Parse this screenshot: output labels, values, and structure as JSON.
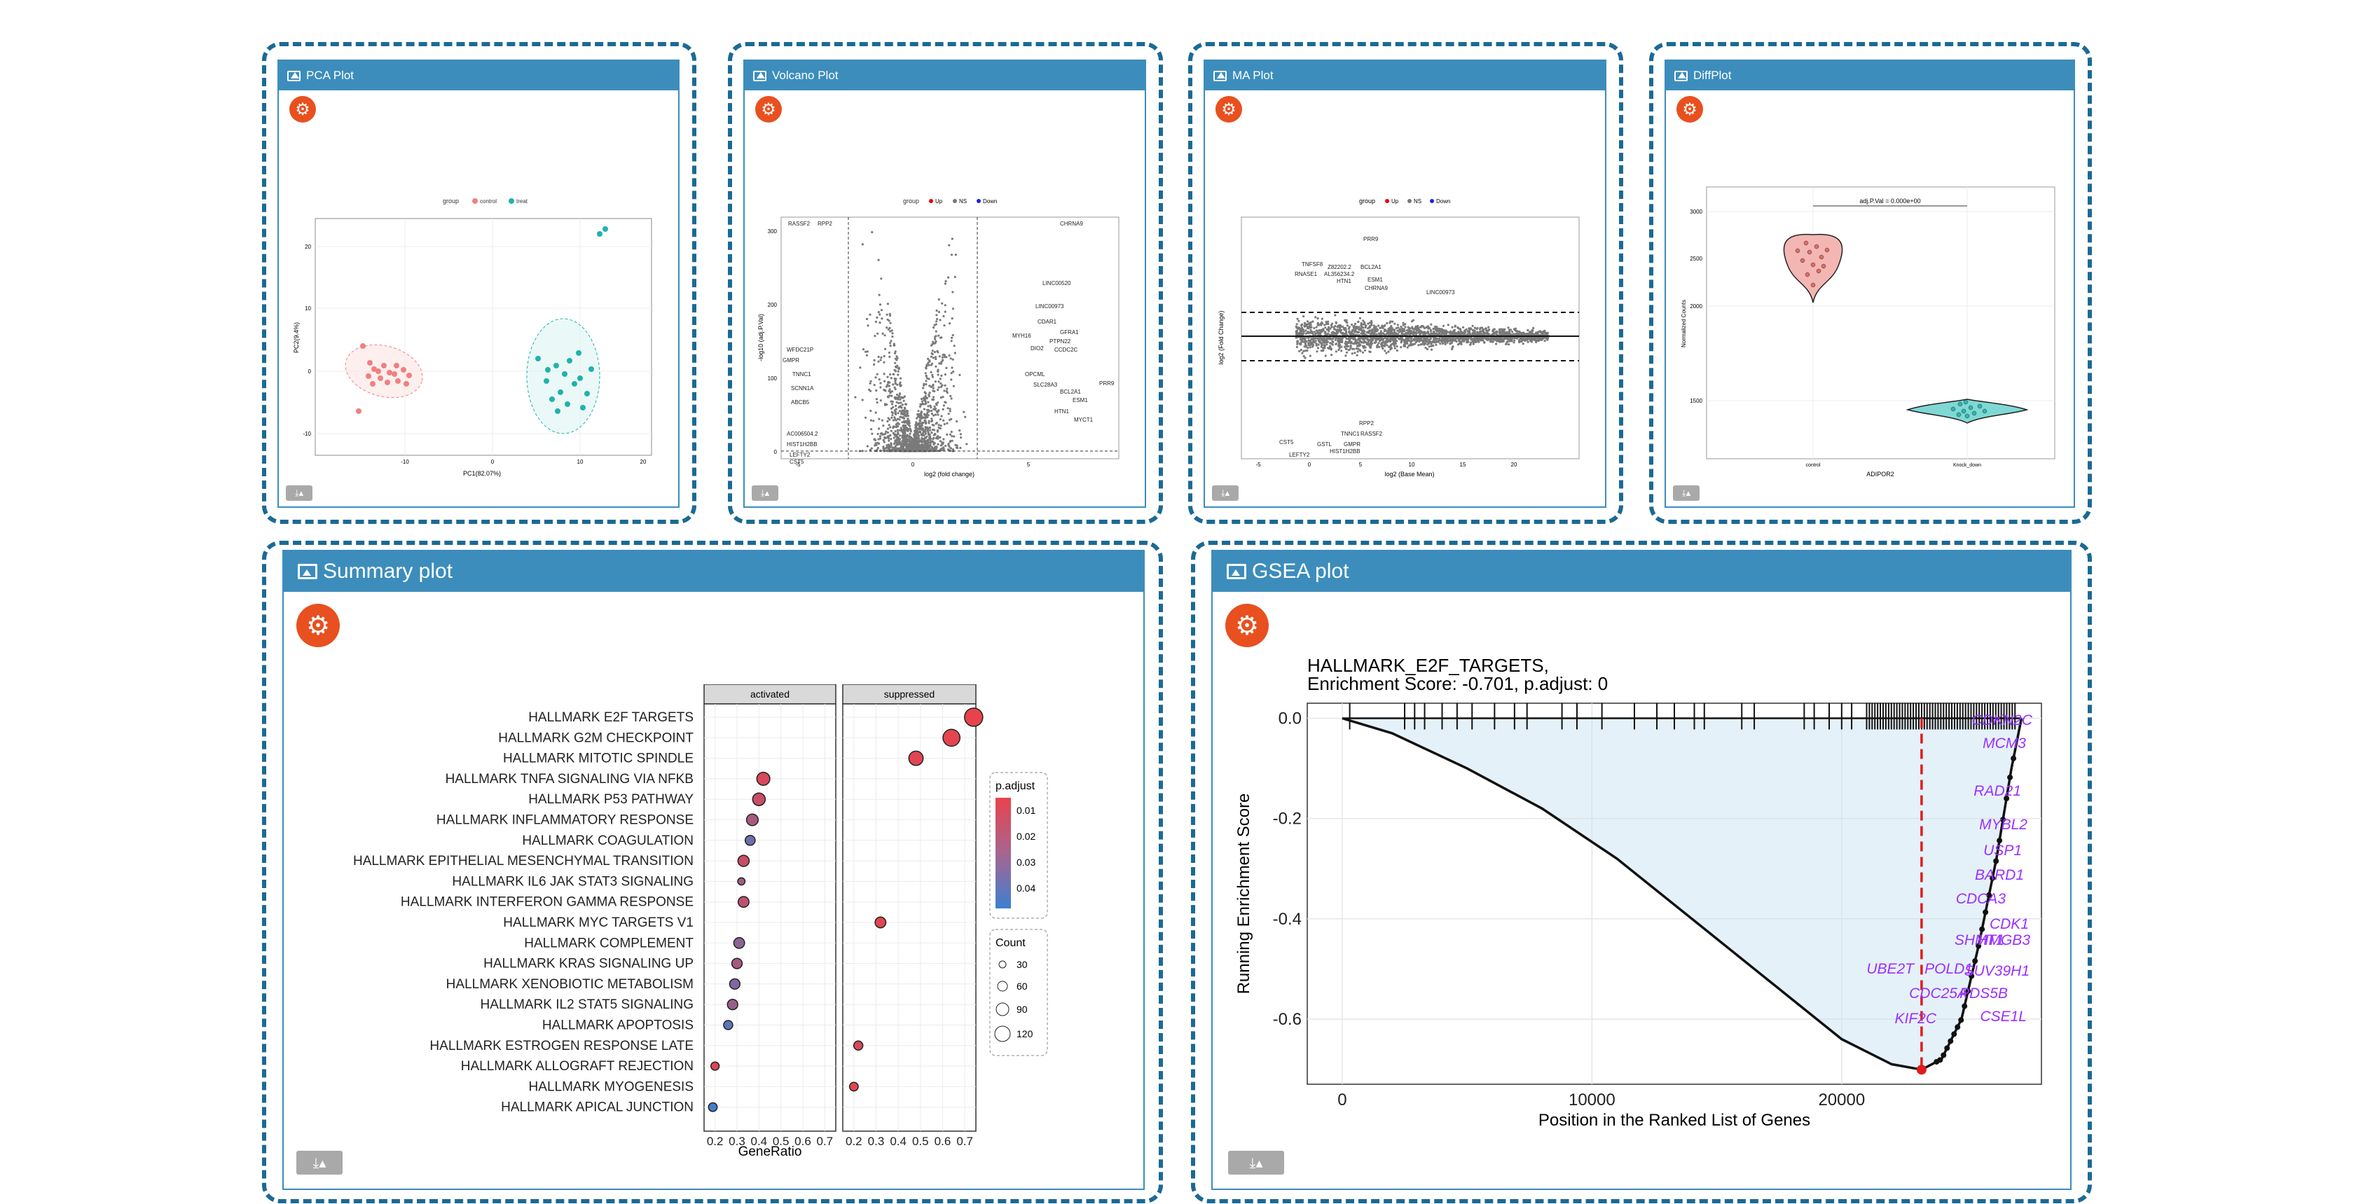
{
  "panels": {
    "pca": {
      "title": "PCA Plot"
    },
    "volcano": {
      "title": "Volcano Plot"
    },
    "ma": {
      "title": "MA Plot"
    },
    "diff": {
      "title": "DiffPlot"
    },
    "summary": {
      "title": "Summary plot"
    },
    "gsea": {
      "title": "GSEA plot"
    }
  },
  "icons": {
    "settings": "gear-icon",
    "download": "download-icon",
    "image": "image-icon"
  },
  "colors": {
    "header": "#3c8dbc",
    "border": "#1b6a94",
    "gear": "#e8501f",
    "download": "#a9a9a9"
  },
  "pca_plot": {
    "legend_title": "group",
    "legend": [
      "control",
      "treat"
    ],
    "xlabel": "PC1(82.07%)",
    "ylabel": "PC2(9.4%)",
    "xticks": [
      "-10",
      "0",
      "10",
      "20"
    ],
    "yticks": [
      "20",
      "10",
      "0",
      "-10"
    ]
  },
  "volcano_plot": {
    "legend_title": "group",
    "legend": [
      "Up",
      "NS",
      "Down"
    ],
    "xlabel": "log2 (fold change)",
    "ylabel": "-log10 (adj.P.Val)",
    "xticks": [
      "-5",
      "0",
      "5"
    ],
    "yticks": [
      "300",
      "200",
      "100",
      "0"
    ],
    "labels": [
      "RASSF2",
      "RPP2",
      "CHRNA9",
      "LINC00520",
      "LINC00973",
      "CDAR1",
      "GFRA1",
      "PTPN22",
      "DIO2",
      "MYH16",
      "CCDC2C",
      "WFDC21P",
      "TNNC1",
      "SCNN1A",
      "ABCB5",
      "GMPR",
      "OPCML",
      "SLC28A3",
      "BCL2A1",
      "ESM1",
      "HTN1",
      "MYCT1",
      "PRR9",
      "AC006504.2",
      "HIST1H2BB",
      "LEFTY2",
      "CST5"
    ]
  },
  "ma_plot": {
    "legend_title": "group",
    "legend": [
      "Up",
      "NS",
      "Down"
    ],
    "xlabel": "log2 (Base Mean)",
    "ylabel": "log2 (Fold Change)",
    "xticks": [
      "-5",
      "0",
      "5",
      "10",
      "15",
      "20"
    ],
    "labels": [
      "PRR9",
      "TNFSF8",
      "Z82202.2",
      "BCL2A1",
      "RNASE1",
      "AL356234.2",
      "ESM1",
      "HTN1",
      "CHRNA9",
      "LINC00973",
      "CST5",
      "LEFTY2",
      "HIST1H2BB",
      "GMPR",
      "RASSF2",
      "RPP2",
      "TNNC1",
      "GSTL"
    ]
  },
  "diff_plot": {
    "annotation": "adj.P.Val = 0.000e+00",
    "ylabel": "Normalized Counts",
    "xlabel": "ADIPOR2",
    "categories": [
      "control",
      "Knock_down"
    ],
    "yticks": [
      "3000",
      "2500",
      "2000",
      "1500"
    ]
  },
  "summary_plot": {
    "facets": [
      "activated",
      "suppressed"
    ],
    "terms": [
      "HALLMARK E2F TARGETS",
      "HALLMARK G2M CHECKPOINT",
      "HALLMARK MITOTIC SPINDLE",
      "HALLMARK TNFA SIGNALING VIA NFKB",
      "HALLMARK P53 PATHWAY",
      "HALLMARK INFLAMMATORY RESPONSE",
      "HALLMARK COAGULATION",
      "HALLMARK EPITHELIAL MESENCHYMAL TRANSITION",
      "HALLMARK IL6 JAK STAT3 SIGNALING",
      "HALLMARK INTERFERON GAMMA RESPONSE",
      "HALLMARK MYC TARGETS V1",
      "HALLMARK COMPLEMENT",
      "HALLMARK KRAS SIGNALING UP",
      "HALLMARK XENOBIOTIC METABOLISM",
      "HALLMARK IL2 STAT5 SIGNALING",
      "HALLMARK APOPTOSIS",
      "HALLMARK ESTROGEN RESPONSE LATE",
      "HALLMARK ALLOGRAFT REJECTION",
      "HALLMARK MYOGENESIS",
      "HALLMARK APICAL JUNCTION"
    ],
    "xticks": [
      "0.2",
      "0.3",
      "0.4",
      "0.5",
      "0.6",
      "0.7"
    ],
    "xlabel": "GeneRatio",
    "legend_padjust_title": "p.adjust",
    "legend_padjust": [
      "0.01",
      "0.02",
      "0.03",
      "0.04"
    ],
    "legend_count_title": "Count",
    "legend_count": [
      "30",
      "60",
      "90",
      "120"
    ]
  },
  "chart_data": [
    {
      "type": "scatter",
      "title": "",
      "xlabel": "GeneRatio",
      "ylabel": "",
      "xlim": [
        0.15,
        0.75
      ],
      "facets": [
        "activated",
        "suppressed"
      ],
      "series": [
        {
          "name": "activated",
          "points": [
            {
              "term": "HALLMARK TNFA SIGNALING VIA NFKB",
              "x": 0.42,
              "padj": 0.006,
              "count": 85
            },
            {
              "term": "HALLMARK P53 PATHWAY",
              "x": 0.4,
              "padj": 0.01,
              "count": 80
            },
            {
              "term": "HALLMARK INFLAMMATORY RESPONSE",
              "x": 0.37,
              "padj": 0.018,
              "count": 70
            },
            {
              "term": "HALLMARK COAGULATION",
              "x": 0.36,
              "padj": 0.032,
              "count": 50
            },
            {
              "term": "HALLMARK EPITHELIAL MESENCHYMAL TRANSITION",
              "x": 0.33,
              "padj": 0.01,
              "count": 65
            },
            {
              "term": "HALLMARK IL6 JAK STAT3 SIGNALING",
              "x": 0.32,
              "padj": 0.02,
              "count": 20
            },
            {
              "term": "HALLMARK INTERFERON GAMMA RESPONSE",
              "x": 0.33,
              "padj": 0.013,
              "count": 60
            },
            {
              "term": "HALLMARK COMPLEMENT",
              "x": 0.31,
              "padj": 0.025,
              "count": 60
            },
            {
              "term": "HALLMARK KRAS SIGNALING UP",
              "x": 0.3,
              "padj": 0.018,
              "count": 55
            },
            {
              "term": "HALLMARK XENOBIOTIC METABOLISM",
              "x": 0.29,
              "padj": 0.028,
              "count": 55
            },
            {
              "term": "HALLMARK IL2 STAT5 SIGNALING",
              "x": 0.28,
              "padj": 0.022,
              "count": 55
            },
            {
              "term": "HALLMARK APOPTOSIS",
              "x": 0.26,
              "padj": 0.036,
              "count": 40
            },
            {
              "term": "HALLMARK ALLOGRAFT REJECTION",
              "x": 0.2,
              "padj": 0.005,
              "count": 30
            },
            {
              "term": "HALLMARK APICAL JUNCTION",
              "x": 0.19,
              "padj": 0.042,
              "count": 35
            }
          ]
        },
        {
          "name": "suppressed",
          "points": [
            {
              "term": "HALLMARK E2F TARGETS",
              "x": 0.74,
              "padj": 0.002,
              "count": 145
            },
            {
              "term": "HALLMARK G2M CHECKPOINT",
              "x": 0.64,
              "padj": 0.003,
              "count": 130
            },
            {
              "term": "HALLMARK MITOTIC SPINDLE",
              "x": 0.48,
              "padj": 0.004,
              "count": 100
            },
            {
              "term": "HALLMARK MYC TARGETS V1",
              "x": 0.32,
              "padj": 0.004,
              "count": 60
            },
            {
              "term": "HALLMARK ESTROGEN RESPONSE LATE",
              "x": 0.22,
              "padj": 0.006,
              "count": 40
            },
            {
              "term": "HALLMARK MYOGENESIS",
              "x": 0.2,
              "padj": 0.004,
              "count": 35
            }
          ]
        }
      ]
    },
    {
      "type": "line",
      "title": "HALLMARK_E2F_TARGETS,",
      "subtitle": "Enrichment Score: -0.701, p.adjust: 0",
      "xlabel": "Position in the Ranked List of Genes",
      "ylabel": "Running Enrichment Score",
      "xlim": [
        -1400,
        28000
      ],
      "ylim": [
        -0.73,
        0.03
      ],
      "xticks": [
        "0",
        "10000",
        "20000"
      ],
      "yticks": [
        "0.0",
        "-0.2",
        "-0.4",
        "-0.6"
      ],
      "series": [
        {
          "x": [
            0,
            2000,
            5000,
            8000,
            11000,
            14000,
            17000,
            20000,
            22000,
            23200,
            24000,
            24800,
            25500,
            26200,
            26800,
            27200
          ],
          "y": [
            0,
            -0.03,
            -0.1,
            -0.18,
            -0.28,
            -0.4,
            -0.52,
            -0.64,
            -0.69,
            -0.701,
            -0.68,
            -0.6,
            -0.45,
            -0.28,
            -0.1,
            0
          ]
        }
      ],
      "peak_x": 23200,
      "gene_labels": [
        "CDKN2C",
        "MCM3",
        "RAD21",
        "MYBL2",
        "USP1",
        "BARD1",
        "CDCA3",
        "CDK1",
        "SHMT1",
        "HMGB3",
        "SUV39H1",
        "UBE2T",
        "POLD1",
        "CDC25A",
        "PDS5B",
        "KIF2C",
        "CSE1L"
      ]
    }
  ]
}
